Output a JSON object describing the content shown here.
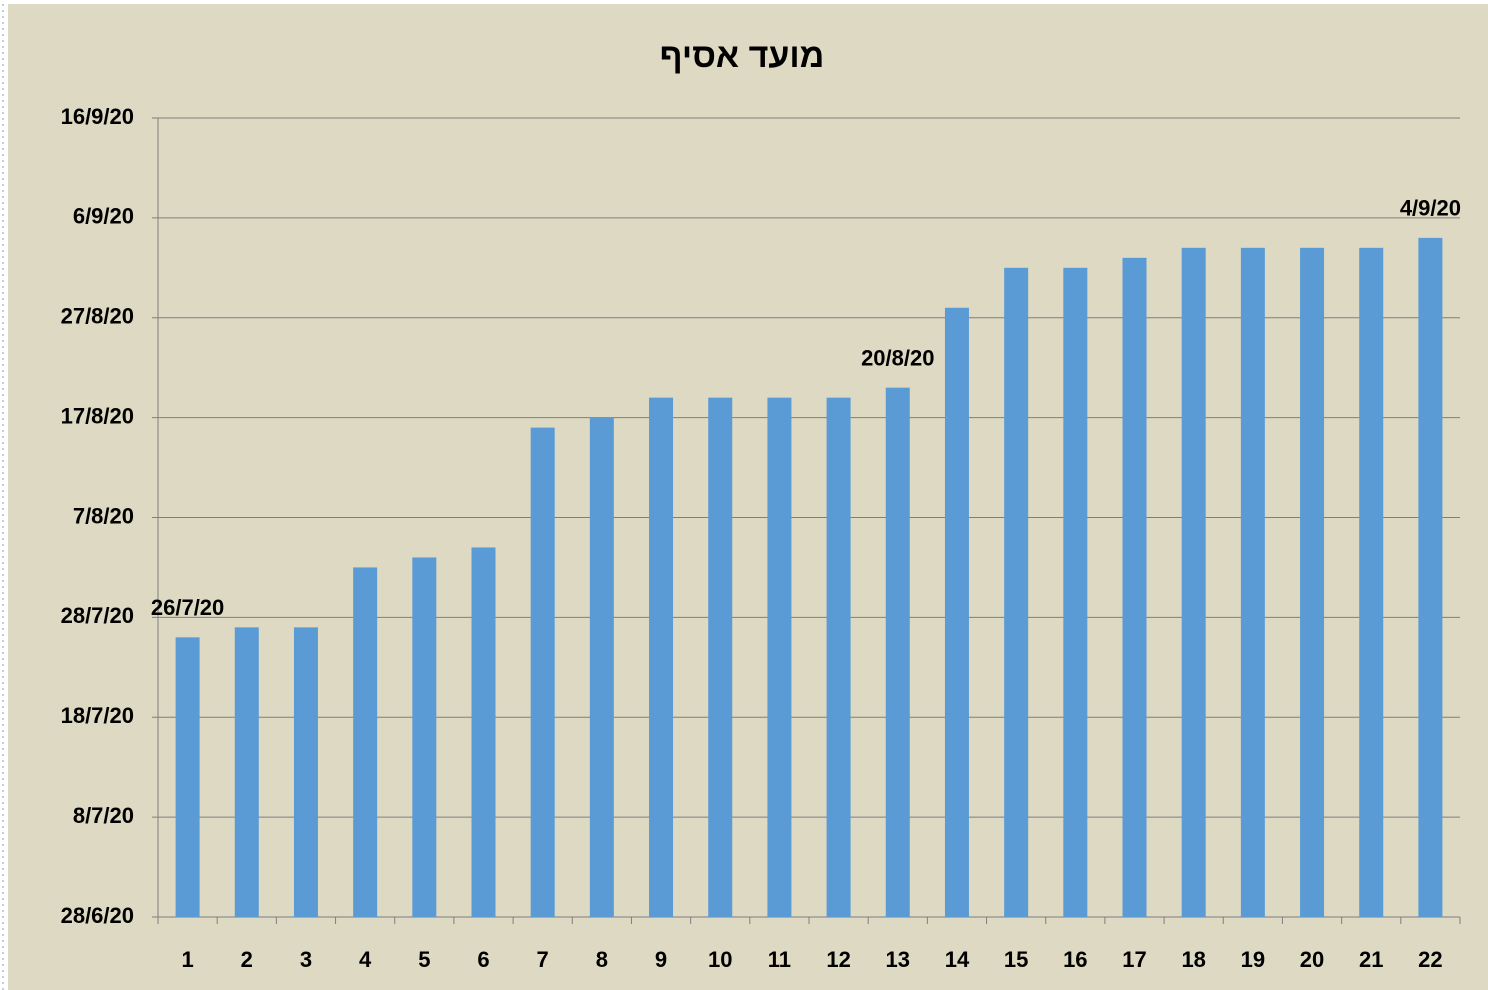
{
  "chart_data": {
    "type": "bar",
    "title": "מועד אסיף",
    "categories": [
      "1",
      "2",
      "3",
      "4",
      "5",
      "6",
      "7",
      "8",
      "9",
      "10",
      "11",
      "12",
      "13",
      "14",
      "15",
      "16",
      "17",
      "18",
      "19",
      "20",
      "21",
      "22"
    ],
    "values": [
      44038,
      44039,
      44039,
      44045,
      44046,
      44047,
      44059,
      44060,
      44062,
      44062,
      44062,
      44062,
      44063,
      44071,
      44075,
      44075,
      44076,
      44077,
      44077,
      44077,
      44077,
      44078
    ],
    "value_labels": [
      "26/7/20",
      null,
      null,
      null,
      null,
      null,
      null,
      null,
      null,
      null,
      null,
      null,
      "20/8/20",
      null,
      null,
      null,
      null,
      null,
      null,
      null,
      null,
      "4/9/20"
    ],
    "color": "#5b9bd5",
    "label_color": "#c00000",
    "ylim": [
      44010,
      44090
    ],
    "yticks": [
      {
        "value": 44010,
        "label": "28/6/20"
      },
      {
        "value": 44020,
        "label": "8/7/20"
      },
      {
        "value": 44030,
        "label": "18/7/20"
      },
      {
        "value": 44040,
        "label": "28/7/20"
      },
      {
        "value": 44050,
        "label": "7/8/20"
      },
      {
        "value": 44060,
        "label": "17/8/20"
      },
      {
        "value": 44070,
        "label": "27/8/20"
      },
      {
        "value": 44080,
        "label": "6/9/20"
      },
      {
        "value": 44090,
        "label": "16/9/20"
      }
    ],
    "grid": true
  }
}
